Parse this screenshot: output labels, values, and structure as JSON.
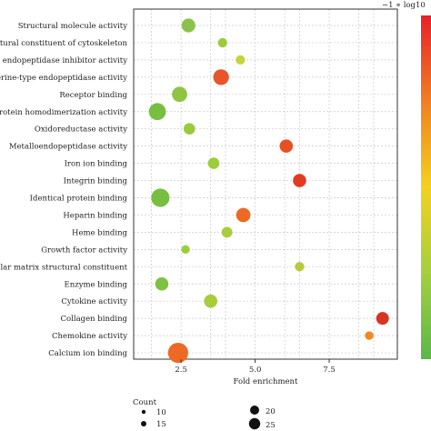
{
  "chart_data": {
    "type": "scatter",
    "categories": [
      "Structural molecule activity",
      "Structural constituent of cytoskeleton",
      "-type endopeptidase inhibitor activity",
      "Serine-type endopeptidase activity",
      "Receptor binding",
      "Protein homodimerization activity",
      "Oxidoreductase activity",
      "Metalloendopeptidase activity",
      "Iron ion binding",
      "Integrin binding",
      "Identical protein binding",
      "Heparin binding",
      "Heme binding",
      "Growth factor activity",
      "acellular matrix structural constituent",
      "Enzyme binding",
      "Cytokine activity",
      "Collagen binding",
      "Chemokine activity",
      "Calcium ion binding"
    ],
    "points": [
      {
        "category": "Structural molecule activity",
        "fold_enrichment": 2.75,
        "count": 13,
        "color": "#8bc34a"
      },
      {
        "category": "Structural constituent of cytoskeleton",
        "fold_enrichment": 3.9,
        "count": 6,
        "color": "#9ccc3c"
      },
      {
        "category": "-type endopeptidase inhibitor activity",
        "fold_enrichment": 4.5,
        "count": 6,
        "color": "#c6d43a"
      },
      {
        "category": "Serine-type endopeptidase activity",
        "fold_enrichment": 3.85,
        "count": 17,
        "color": "#e8552a"
      },
      {
        "category": "Receptor binding",
        "fold_enrichment": 2.45,
        "count": 16,
        "color": "#90c543"
      },
      {
        "category": "Protein homodimerization activity",
        "fold_enrichment": 1.7,
        "count": 20,
        "color": "#79bf3f"
      },
      {
        "category": "Oxidoreductase activity",
        "fold_enrichment": 2.78,
        "count": 9,
        "color": "#9acb3d"
      },
      {
        "category": "Metalloendopeptidase activity",
        "fold_enrichment": 6.05,
        "count": 12,
        "color": "#e84f22"
      },
      {
        "category": "Iron ion binding",
        "fold_enrichment": 3.6,
        "count": 9,
        "color": "#9ccd3d"
      },
      {
        "category": "Integrin binding",
        "fold_enrichment": 6.5,
        "count": 12,
        "color": "#e03c22"
      },
      {
        "category": "Identical protein binding",
        "fold_enrichment": 1.8,
        "count": 23,
        "color": "#78be40"
      },
      {
        "category": "Heparin binding",
        "fold_enrichment": 4.6,
        "count": 14,
        "color": "#ec6a24"
      },
      {
        "category": "Heme binding",
        "fold_enrichment": 4.05,
        "count": 8,
        "color": "#a8cd3d"
      },
      {
        "category": "Growth factor activity",
        "fold_enrichment": 2.65,
        "count": 5,
        "color": "#9ccd3d"
      },
      {
        "category": "acellular matrix structural constituent",
        "fold_enrichment": 6.5,
        "count": 6,
        "color": "#b9c93a"
      },
      {
        "category": "Enzyme binding",
        "fold_enrichment": 1.85,
        "count": 12,
        "color": "#7fc140"
      },
      {
        "category": "Cytokine activity",
        "fold_enrichment": 3.5,
        "count": 12,
        "color": "#a7cc3c"
      },
      {
        "category": "Collagen binding",
        "fold_enrichment": 9.3,
        "count": 11,
        "color": "#d93322"
      },
      {
        "category": "Chemokine activity",
        "fold_enrichment": 8.85,
        "count": 5,
        "color": "#f08a25"
      },
      {
        "category": "Calcium ion binding",
        "fold_enrichment": 2.4,
        "count": 28,
        "color": "#ee6a24"
      }
    ],
    "xlabel": "Fold enrichment",
    "xticks": [
      2.5,
      5.0,
      7.5
    ],
    "xtick_labels": [
      "2.5",
      "5.0",
      "7.5"
    ],
    "xlim": [
      0.9,
      9.8
    ],
    "grid": true,
    "colorbar": {
      "title": "−1 ∗ log10",
      "colors": [
        "#e8202a",
        "#f07f22",
        "#f4d11d",
        "#a4cf3e",
        "#5bb848"
      ]
    },
    "size_legend": {
      "title": "Count",
      "values": [
        10,
        15,
        20,
        25
      ],
      "labels": [
        "10",
        "15",
        "20",
        "25"
      ]
    }
  }
}
